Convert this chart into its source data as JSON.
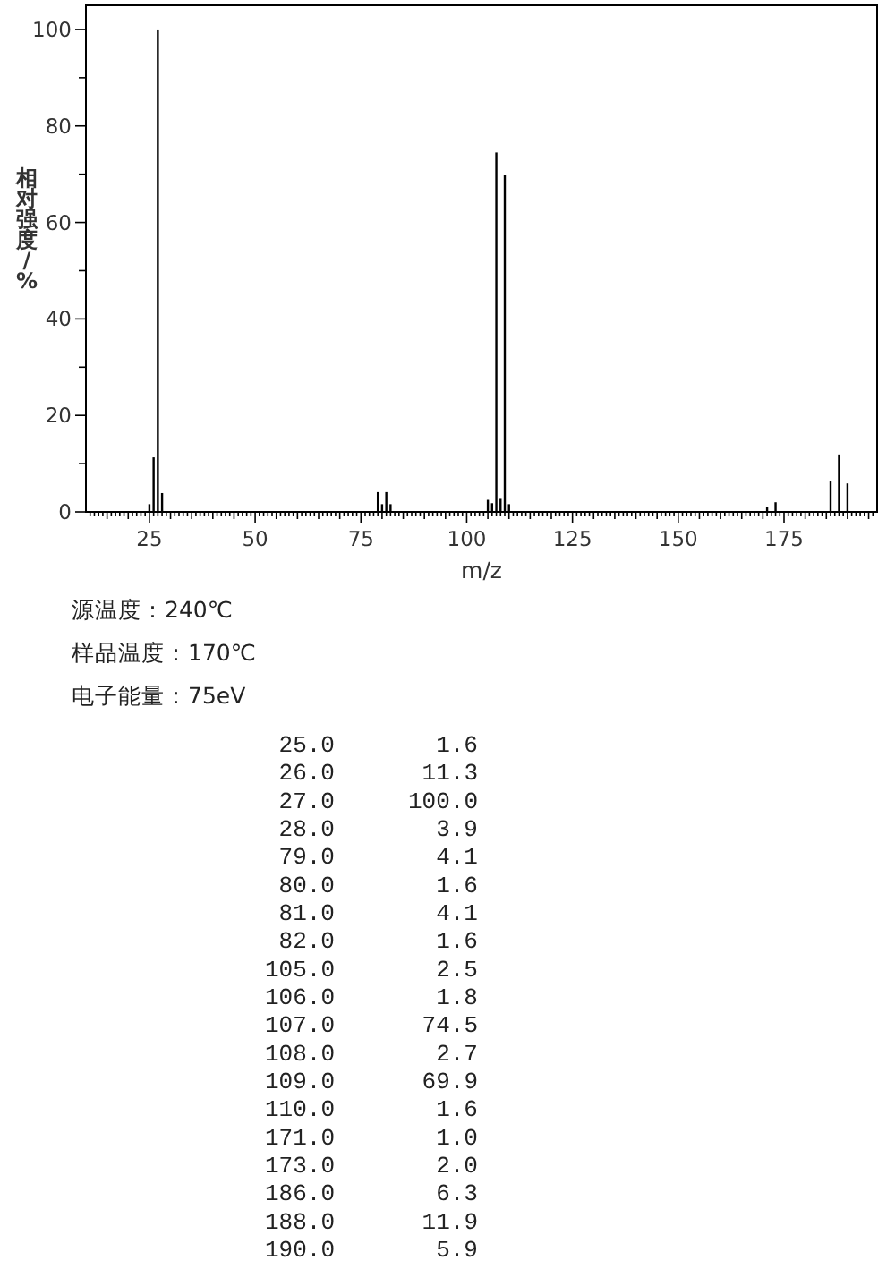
{
  "chart_data": {
    "type": "bar",
    "color": "#000000",
    "x": [
      25,
      26,
      27,
      28,
      79,
      80,
      81,
      82,
      105,
      106,
      107,
      108,
      109,
      110,
      171,
      173,
      186,
      188,
      190
    ],
    "values": [
      1.6,
      11.3,
      100.0,
      3.9,
      4.1,
      1.6,
      4.1,
      1.6,
      2.5,
      1.8,
      74.5,
      2.7,
      69.9,
      1.6,
      1.0,
      2.0,
      6.3,
      11.9,
      5.9
    ],
    "xlim": [
      10,
      197
    ],
    "ylim": [
      0,
      105
    ],
    "xticks": [
      {
        "value": 11,
        "label": null
      },
      {
        "value": 12,
        "label": null
      },
      {
        "value": 13,
        "label": null
      },
      {
        "value": 14,
        "label": null
      },
      {
        "value": 15,
        "label": null
      },
      {
        "value": 16,
        "label": null
      },
      {
        "value": 17,
        "label": null
      },
      {
        "value": 18,
        "label": null
      },
      {
        "value": 19,
        "label": null
      },
      {
        "value": 20,
        "label": null
      },
      {
        "value": 21,
        "label": null
      },
      {
        "value": 22,
        "label": null
      },
      {
        "value": 23,
        "label": null
      },
      {
        "value": 24,
        "label": null
      },
      25,
      {
        "value": 26,
        "label": null
      },
      {
        "value": 27,
        "label": null
      },
      {
        "value": 28,
        "label": null
      },
      {
        "value": 29,
        "label": null
      },
      {
        "value": 30,
        "label": null
      },
      {
        "value": 31,
        "label": null
      },
      {
        "value": 32,
        "label": null
      },
      {
        "value": 33,
        "label": null
      },
      {
        "value": 34,
        "label": null
      },
      {
        "value": 35,
        "label": null
      },
      {
        "value": 36,
        "label": null
      },
      {
        "value": 37,
        "label": null
      },
      {
        "value": 38,
        "label": null
      },
      {
        "value": 39,
        "label": null
      },
      {
        "value": 40,
        "label": null
      },
      {
        "value": 41,
        "label": null
      },
      {
        "value": 42,
        "label": null
      },
      {
        "value": 43,
        "label": null
      },
      {
        "value": 44,
        "label": null
      },
      {
        "value": 45,
        "label": null
      },
      {
        "value": 46,
        "label": null
      },
      {
        "value": 47,
        "label": null
      },
      {
        "value": 48,
        "label": null
      },
      {
        "value": 49,
        "label": null
      },
      50,
      {
        "value": 51,
        "label": null
      },
      {
        "value": 52,
        "label": null
      },
      {
        "value": 53,
        "label": null
      },
      {
        "value": 54,
        "label": null
      },
      {
        "value": 55,
        "label": null
      },
      {
        "value": 56,
        "label": null
      },
      {
        "value": 57,
        "label": null
      },
      {
        "value": 58,
        "label": null
      },
      {
        "value": 59,
        "label": null
      },
      {
        "value": 60,
        "label": null
      },
      {
        "value": 61,
        "label": null
      },
      {
        "value": 62,
        "label": null
      },
      {
        "value": 63,
        "label": null
      },
      {
        "value": 64,
        "label": null
      },
      {
        "value": 65,
        "label": null
      },
      {
        "value": 66,
        "label": null
      },
      {
        "value": 67,
        "label": null
      },
      {
        "value": 68,
        "label": null
      },
      {
        "value": 69,
        "label": null
      },
      {
        "value": 70,
        "label": null
      },
      {
        "value": 71,
        "label": null
      },
      {
        "value": 72,
        "label": null
      },
      {
        "value": 73,
        "label": null
      },
      {
        "value": 74,
        "label": null
      },
      75,
      {
        "value": 76,
        "label": null
      },
      {
        "value": 77,
        "label": null
      },
      {
        "value": 78,
        "label": null
      },
      {
        "value": 79,
        "label": null
      },
      {
        "value": 80,
        "label": null
      },
      {
        "value": 81,
        "label": null
      },
      {
        "value": 82,
        "label": null
      },
      {
        "value": 83,
        "label": null
      },
      {
        "value": 84,
        "label": null
      },
      {
        "value": 85,
        "label": null
      },
      {
        "value": 86,
        "label": null
      },
      {
        "value": 87,
        "label": null
      },
      {
        "value": 88,
        "label": null
      },
      {
        "value": 89,
        "label": null
      },
      {
        "value": 90,
        "label": null
      },
      {
        "value": 91,
        "label": null
      },
      {
        "value": 92,
        "label": null
      },
      {
        "value": 93,
        "label": null
      },
      {
        "value": 94,
        "label": null
      },
      {
        "value": 95,
        "label": null
      },
      {
        "value": 96,
        "label": null
      },
      {
        "value": 97,
        "label": null
      },
      {
        "value": 98,
        "label": null
      },
      {
        "value": 99,
        "label": null
      },
      100,
      {
        "value": 101,
        "label": null
      },
      {
        "value": 102,
        "label": null
      },
      {
        "value": 103,
        "label": null
      },
      {
        "value": 104,
        "label": null
      },
      {
        "value": 105,
        "label": null
      },
      {
        "value": 106,
        "label": null
      },
      {
        "value": 107,
        "label": null
      },
      {
        "value": 108,
        "label": null
      },
      {
        "value": 109,
        "label": null
      },
      {
        "value": 110,
        "label": null
      },
      {
        "value": 111,
        "label": null
      },
      {
        "value": 112,
        "label": null
      },
      {
        "value": 113,
        "label": null
      },
      {
        "value": 114,
        "label": null
      },
      {
        "value": 115,
        "label": null
      },
      {
        "value": 116,
        "label": null
      },
      {
        "value": 117,
        "label": null
      },
      {
        "value": 118,
        "label": null
      },
      {
        "value": 119,
        "label": null
      },
      {
        "value": 120,
        "label": null
      },
      {
        "value": 121,
        "label": null
      },
      {
        "value": 122,
        "label": null
      },
      {
        "value": 123,
        "label": null
      },
      {
        "value": 124,
        "label": null
      },
      125,
      {
        "value": 126,
        "label": null
      },
      {
        "value": 127,
        "label": null
      },
      {
        "value": 128,
        "label": null
      },
      {
        "value": 129,
        "label": null
      },
      {
        "value": 130,
        "label": null
      },
      {
        "value": 131,
        "label": null
      },
      {
        "value": 132,
        "label": null
      },
      {
        "value": 133,
        "label": null
      },
      {
        "value": 134,
        "label": null
      },
      {
        "value": 135,
        "label": null
      },
      {
        "value": 136,
        "label": null
      },
      {
        "value": 137,
        "label": null
      },
      {
        "value": 138,
        "label": null
      },
      {
        "value": 139,
        "label": null
      },
      {
        "value": 140,
        "label": null
      },
      {
        "value": 141,
        "label": null
      },
      {
        "value": 142,
        "label": null
      },
      {
        "value": 143,
        "label": null
      },
      {
        "value": 144,
        "label": null
      },
      {
        "value": 145,
        "label": null
      },
      {
        "value": 146,
        "label": null
      },
      {
        "value": 147,
        "label": null
      },
      {
        "value": 148,
        "label": null
      },
      {
        "value": 149,
        "label": null
      },
      150,
      {
        "value": 151,
        "label": null
      },
      {
        "value": 152,
        "label": null
      },
      {
        "value": 153,
        "label": null
      },
      {
        "value": 154,
        "label": null
      },
      {
        "value": 155,
        "label": null
      },
      {
        "value": 156,
        "label": null
      },
      {
        "value": 157,
        "label": null
      },
      {
        "value": 158,
        "label": null
      },
      {
        "value": 159,
        "label": null
      },
      {
        "value": 160,
        "label": null
      },
      {
        "value": 161,
        "label": null
      },
      {
        "value": 162,
        "label": null
      },
      {
        "value": 163,
        "label": null
      },
      {
        "value": 164,
        "label": null
      },
      {
        "value": 165,
        "label": null
      },
      {
        "value": 166,
        "label": null
      },
      {
        "value": 167,
        "label": null
      },
      {
        "value": 168,
        "label": null
      },
      {
        "value": 169,
        "label": null
      },
      {
        "value": 170,
        "label": null
      },
      {
        "value": 171,
        "label": null
      },
      {
        "value": 172,
        "label": null
      },
      {
        "value": 173,
        "label": null
      },
      {
        "value": 174,
        "label": null
      },
      175,
      {
        "value": 176,
        "label": null
      },
      {
        "value": 177,
        "label": null
      },
      {
        "value": 178,
        "label": null
      },
      {
        "value": 179,
        "label": null
      },
      {
        "value": 180,
        "label": null
      },
      {
        "value": 181,
        "label": null
      },
      {
        "value": 182,
        "label": null
      },
      {
        "value": 183,
        "label": null
      },
      {
        "value": 184,
        "label": null
      },
      {
        "value": 185,
        "label": null
      },
      {
        "value": 186,
        "label": null
      },
      {
        "value": 187,
        "label": null
      },
      {
        "value": 188,
        "label": null
      },
      {
        "value": 189,
        "label": null
      },
      {
        "value": 190,
        "label": null
      },
      {
        "value": 191,
        "label": null
      },
      {
        "value": 192,
        "label": null
      },
      {
        "value": 193,
        "label": null
      },
      {
        "value": 194,
        "label": null
      },
      {
        "value": 195,
        "label": null
      },
      {
        "value": 196,
        "label": null
      }
    ],
    "yticks": [
      0,
      {
        "value": 10,
        "label": null
      },
      20,
      {
        "value": 30,
        "label": null
      },
      40,
      {
        "value": 50,
        "label": null
      },
      60,
      {
        "value": 70,
        "label": null
      },
      80,
      {
        "value": 90,
        "label": null
      },
      100
    ],
    "xlabel": "m/z",
    "ylabel": "相对强度/%",
    "annotations": [
      "源温度：240℃",
      "样品温度：170℃",
      "电子能量：75eV",
      "25.0 1.6",
      "26.0 11.3",
      "27.0 100.0",
      "28.0 3.9",
      "79.0 4.1",
      "80.0 1.6",
      "81.0 4.1",
      "82.0 1.6",
      "105.0 2.5",
      "106.0 1.8",
      "107.0 74.5",
      "108.0 2.7",
      "109.0 69.9",
      "110.0 1.6",
      "171.0 1.0",
      "173.0 2.0",
      "186.0 6.3",
      "188.0 11.9",
      "190.0 5.9"
    ]
  }
}
